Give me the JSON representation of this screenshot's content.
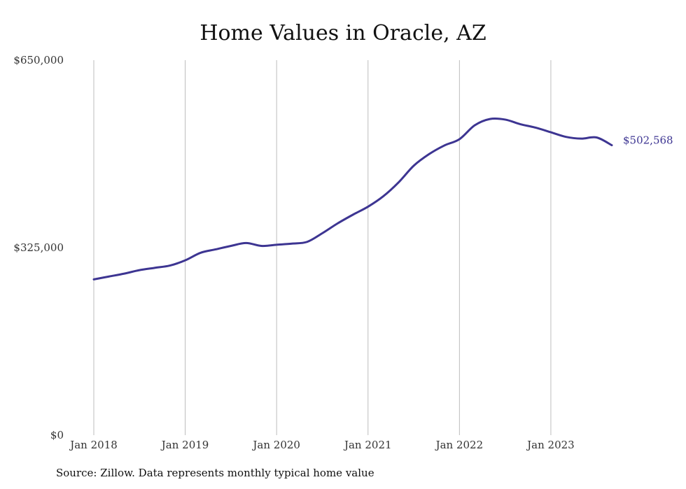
{
  "chart_data": {
    "type": "line",
    "title": "Home Values in Oracle, AZ",
    "y_tick_labels": [
      "$0",
      "$325,000",
      "$650,000"
    ],
    "y_ticks": [
      0,
      325000,
      650000
    ],
    "ylim": [
      0,
      650000
    ],
    "x_tick_labels": [
      "Jan 2018",
      "Jan 2019",
      "Jan 2020",
      "Jan 2021",
      "Jan 2022",
      "Jan 2023"
    ],
    "x_ticks": [
      "2018-01",
      "2019-01",
      "2020-01",
      "2021-01",
      "2022-01",
      "2023-01"
    ],
    "xlim": [
      "2018-01",
      "2023-09"
    ],
    "grid": "vertical",
    "line_color": "#3d3592",
    "series": [
      {
        "x": [
          "2018-01",
          "2018-03",
          "2018-05",
          "2018-07",
          "2018-09",
          "2018-11",
          "2019-01",
          "2019-03",
          "2019-05",
          "2019-07",
          "2019-09",
          "2019-11",
          "2020-01",
          "2020-03",
          "2020-05",
          "2020-07",
          "2020-09",
          "2020-11",
          "2021-01",
          "2021-03",
          "2021-05",
          "2021-07",
          "2021-09",
          "2021-11",
          "2022-01",
          "2022-03",
          "2022-05",
          "2022-07",
          "2022-09",
          "2022-11",
          "2023-01",
          "2023-03",
          "2023-05",
          "2023-07",
          "2023-09"
        ],
        "values": [
          270000,
          275000,
          280000,
          286000,
          290000,
          294000,
          303000,
          316000,
          322000,
          328000,
          333000,
          328000,
          330000,
          332000,
          335000,
          350000,
          367000,
          382000,
          396000,
          414000,
          438000,
          467000,
          487000,
          502000,
          513000,
          537000,
          548000,
          547000,
          539000,
          533000,
          525000,
          517000,
          514000,
          516000,
          502568
        ]
      }
    ],
    "end_label": "$502,568",
    "source": "Source: Zillow. Data represents monthly typical home value"
  }
}
